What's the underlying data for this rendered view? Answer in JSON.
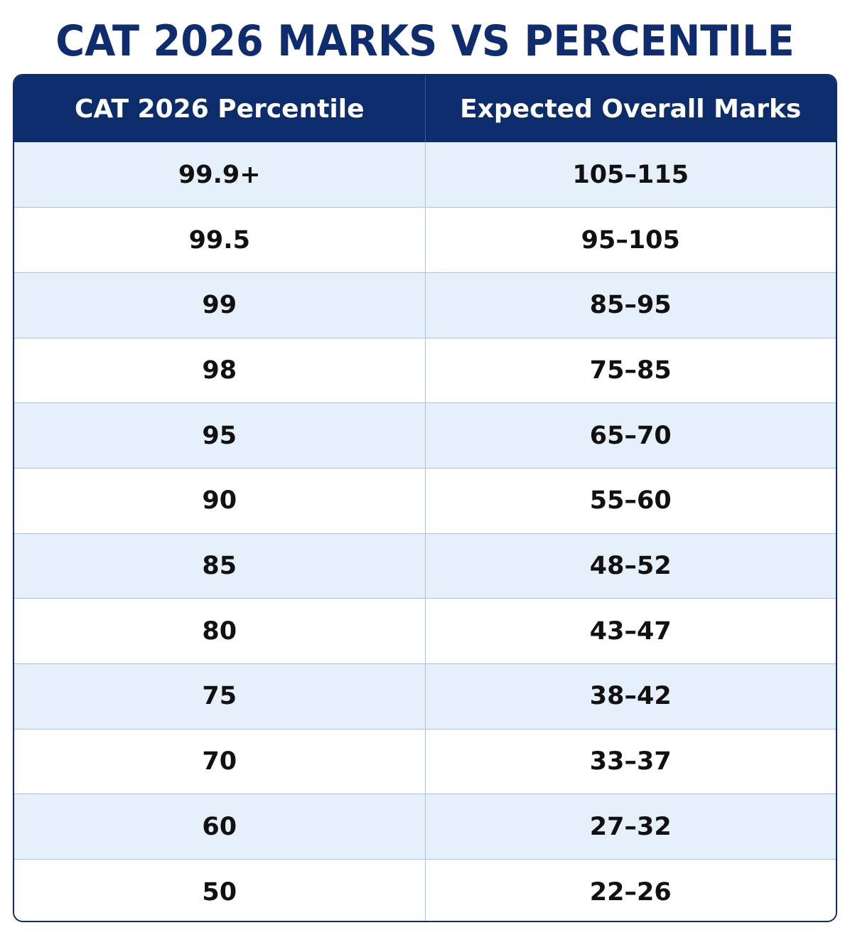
{
  "title": "CAT 2026 MARKS VS PERCENTILE",
  "table": {
    "headers": [
      "CAT 2026 Percentile",
      "Expected Overall Marks"
    ],
    "rows": [
      [
        "99.9+",
        "105–115"
      ],
      [
        "99.5",
        "95–105"
      ],
      [
        "99",
        "85–95"
      ],
      [
        "98",
        "75–85"
      ],
      [
        "95",
        "65–70"
      ],
      [
        "90",
        "55–60"
      ],
      [
        "85",
        "48–52"
      ],
      [
        "80",
        "43–47"
      ],
      [
        "75",
        "38–42"
      ],
      [
        "70",
        "33–37"
      ],
      [
        "60",
        "27–32"
      ],
      [
        "50",
        "22–26"
      ]
    ]
  },
  "colors": {
    "title": "#0f2d6e",
    "header_bg": "#0c2c6c",
    "header_text": "#ffffff",
    "row_alt_bg": "#e6f0fb",
    "row_bg": "#ffffff",
    "grid_line": "#a9c1e4"
  }
}
